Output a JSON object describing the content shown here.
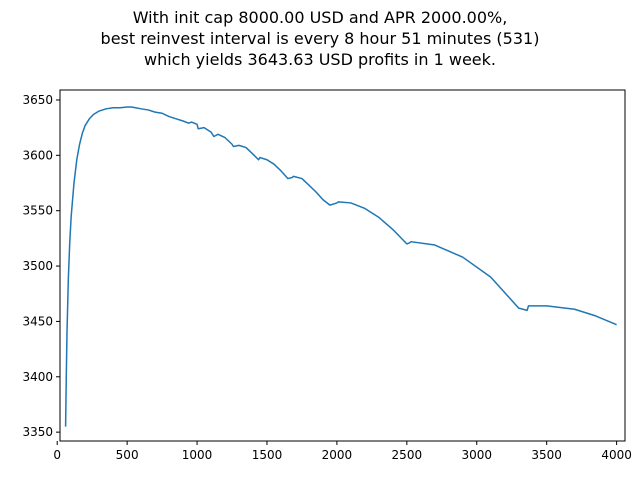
{
  "chart_data": {
    "type": "line",
    "title_lines": [
      "With init cap 8000.00 USD and APR 2000.00%,",
      "best reinvest interval is every 8 hour 51 minutes (531)",
      "which yields 3643.63 USD profits in 1 week."
    ],
    "xlabel": "",
    "ylabel": "",
    "xlim": [
      20,
      4060
    ],
    "ylim": [
      3342,
      3659
    ],
    "xticks": [
      0,
      500,
      1000,
      1500,
      2000,
      2500,
      3000,
      3500,
      4000
    ],
    "yticks": [
      3350,
      3400,
      3450,
      3500,
      3550,
      3600,
      3650
    ],
    "grid": false,
    "color": "#1f77b4",
    "series": [
      {
        "x": [
          60,
          65,
          70,
          80,
          90,
          100,
          120,
          140,
          160,
          180,
          200,
          230,
          260,
          300,
          350,
          400,
          450,
          500,
          531,
          560,
          600,
          650,
          700,
          750,
          800,
          850,
          900,
          940,
          960,
          1000,
          1008,
          1050,
          1100,
          1120,
          1150,
          1200,
          1250,
          1260,
          1300,
          1350,
          1400,
          1440,
          1450,
          1500,
          1550,
          1600,
          1650,
          1680,
          1690,
          1750,
          1800,
          1850,
          1900,
          1950,
          2000,
          2010,
          2100,
          2200,
          2300,
          2400,
          2500,
          2520,
          2530,
          2700,
          2900,
          3100,
          3300,
          3360,
          3370,
          3500,
          3700,
          3850,
          4000
        ],
        "y": [
          3355,
          3400,
          3440,
          3490,
          3522,
          3545,
          3575,
          3596,
          3610,
          3620,
          3627,
          3633,
          3637,
          3640,
          3642,
          3643,
          3643,
          3643.6,
          3643.6,
          3643,
          3642,
          3641,
          3639,
          3638,
          3635,
          3633,
          3631,
          3629,
          3630,
          3628,
          3624,
          3625,
          3621,
          3617,
          3619,
          3616,
          3610,
          3608,
          3609,
          3607,
          3601,
          3596,
          3598,
          3596,
          3592,
          3586,
          3579,
          3580,
          3581,
          3579,
          3573,
          3567,
          3560,
          3555,
          3557,
          3558,
          3557,
          3552,
          3544,
          3533,
          3520,
          3521,
          3522,
          3519,
          3508,
          3490,
          3462,
          3460,
          3464,
          3464,
          3461,
          3455,
          3447
        ]
      }
    ]
  }
}
